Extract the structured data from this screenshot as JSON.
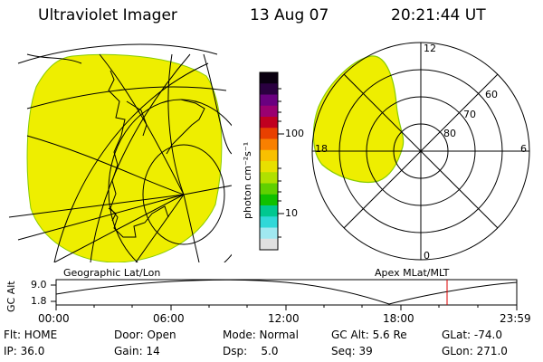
{
  "header": {
    "instrument": "Ultraviolet Imager",
    "date": "13 Aug 07",
    "time": "20:21:44 UT"
  },
  "panels": {
    "geographic_label": "Geographic Lat/Lon",
    "apex_label": "Apex MLat/MLT",
    "polar_mlt": {
      "top": "12",
      "left": "18",
      "right": "6",
      "bottom": "0"
    },
    "polar_mlat": [
      "60",
      "70",
      "80"
    ]
  },
  "colorbar": {
    "unit_label": "photon cm⁻²s⁻¹",
    "ticks": [
      "100",
      "10"
    ],
    "colors": [
      "#0a0010",
      "#2a0040",
      "#6a0080",
      "#9a0070",
      "#c00020",
      "#e84000",
      "#f88000",
      "#f8c000",
      "#e8e000",
      "#b0e000",
      "#60d000",
      "#10c000",
      "#00c890",
      "#30d8d8",
      "#a0e8f0",
      "#e0e0e0"
    ]
  },
  "altitude_plot": {
    "ylabel": "GC Alt",
    "yticks": [
      "9.0",
      "1.8"
    ],
    "xticks": [
      "00:00",
      "06:00",
      "12:00",
      "18:00",
      "23:59"
    ],
    "current_time_fraction": 0.8488
  },
  "info": {
    "row1": [
      "Flt: HOME",
      "Door: Open",
      "Mode: Normal",
      "GC Alt: 5.6 Re",
      "GLat: -74.0"
    ],
    "row2": [
      "IP: 36.0",
      "Gain: 14",
      "Dsp:    5.0",
      "Seq: 39",
      "GLon: 271.0"
    ]
  },
  "colors": {
    "aurora": "#eeee00",
    "aurora_edge": "#88cc00",
    "marker": "#dd0000"
  }
}
